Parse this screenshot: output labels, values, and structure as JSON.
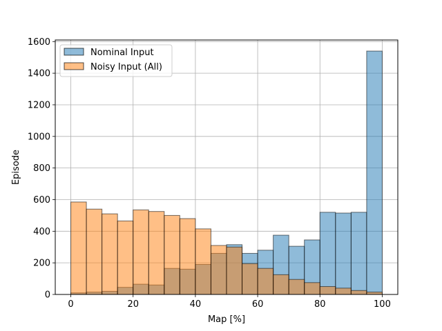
{
  "chart_data": {
    "type": "bar",
    "xlabel": "Map [%]",
    "ylabel": "Episode",
    "xlim": [
      -5,
      105
    ],
    "ylim": [
      0,
      1610
    ],
    "xticks": [
      0,
      20,
      40,
      60,
      80,
      100
    ],
    "yticks": [
      0,
      200,
      400,
      600,
      800,
      1000,
      1200,
      1400,
      1600
    ],
    "grid": true,
    "legend_position": "upper-left",
    "bin_edges": [
      0,
      5,
      10,
      15,
      20,
      25,
      30,
      35,
      40,
      45,
      50,
      55,
      60,
      65,
      70,
      75,
      80,
      85,
      90,
      95,
      100
    ],
    "series": [
      {
        "name": "Nominal Input",
        "color": "#1f77b4",
        "values": [
          10,
          15,
          20,
          45,
          65,
          60,
          165,
          160,
          190,
          260,
          315,
          260,
          280,
          375,
          305,
          345,
          520,
          515,
          520,
          1540
        ]
      },
      {
        "name": "Noisy Input (All)",
        "color": "#ff7f0e",
        "values": [
          585,
          540,
          510,
          465,
          535,
          525,
          500,
          480,
          415,
          310,
          300,
          195,
          165,
          125,
          95,
          75,
          50,
          40,
          25,
          15
        ]
      }
    ]
  }
}
